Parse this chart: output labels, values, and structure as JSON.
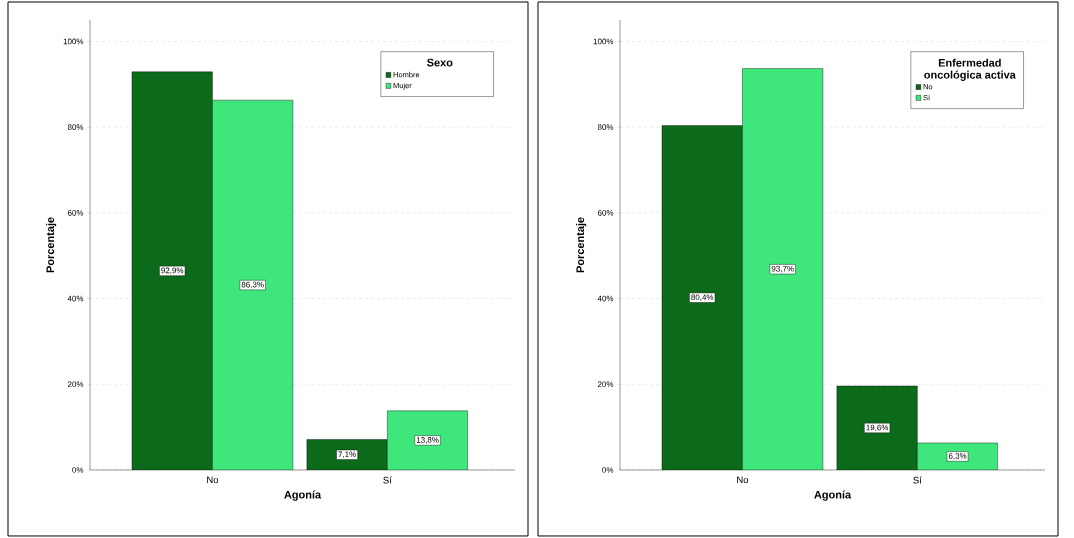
{
  "chart_data": [
    {
      "type": "bar",
      "xlabel": "Agonía",
      "ylabel": "Porcentaje",
      "legend_title": "Sexo",
      "categories": [
        "No",
        "Sí"
      ],
      "series": [
        {
          "name": "Hombre",
          "color": "#0c6b1a",
          "values": [
            92.9,
            7.1
          ],
          "value_labels": [
            "92,9%",
            "7,1%"
          ]
        },
        {
          "name": "Mujer",
          "color": "#3ee67b",
          "values": [
            86.3,
            13.8
          ],
          "value_labels": [
            "86,3%",
            "13,8%"
          ]
        }
      ],
      "ylim": [
        0,
        105
      ],
      "yticks": [
        {
          "value": 0,
          "label": "0%"
        },
        {
          "value": 20,
          "label": "20%"
        },
        {
          "value": 40,
          "label": "40%"
        },
        {
          "value": 60,
          "label": "60%"
        },
        {
          "value": 80,
          "label": "80%"
        },
        {
          "value": 100,
          "label": "100%"
        }
      ],
      "grid": "y",
      "legend": "top right"
    },
    {
      "type": "bar",
      "xlabel": "Agonía",
      "ylabel": "Porcentaje",
      "legend_title": "Enfermedad oncológica activa",
      "categories": [
        "No",
        "Sí"
      ],
      "series": [
        {
          "name": "No",
          "color": "#0c6b1a",
          "values": [
            80.4,
            19.6
          ],
          "value_labels": [
            "80,4%",
            "19,6%"
          ]
        },
        {
          "name": "Sí",
          "color": "#3ee67b",
          "values": [
            93.7,
            6.3
          ],
          "value_labels": [
            "93,7%",
            "6,3%"
          ]
        }
      ],
      "ylim": [
        0,
        105
      ],
      "yticks": [
        {
          "value": 0,
          "label": "0%"
        },
        {
          "value": 20,
          "label": "20%"
        },
        {
          "value": 40,
          "label": "40%"
        },
        {
          "value": 60,
          "label": "60%"
        },
        {
          "value": 80,
          "label": "80%"
        },
        {
          "value": 100,
          "label": "100%"
        }
      ],
      "grid": "y",
      "legend": "top right"
    }
  ]
}
